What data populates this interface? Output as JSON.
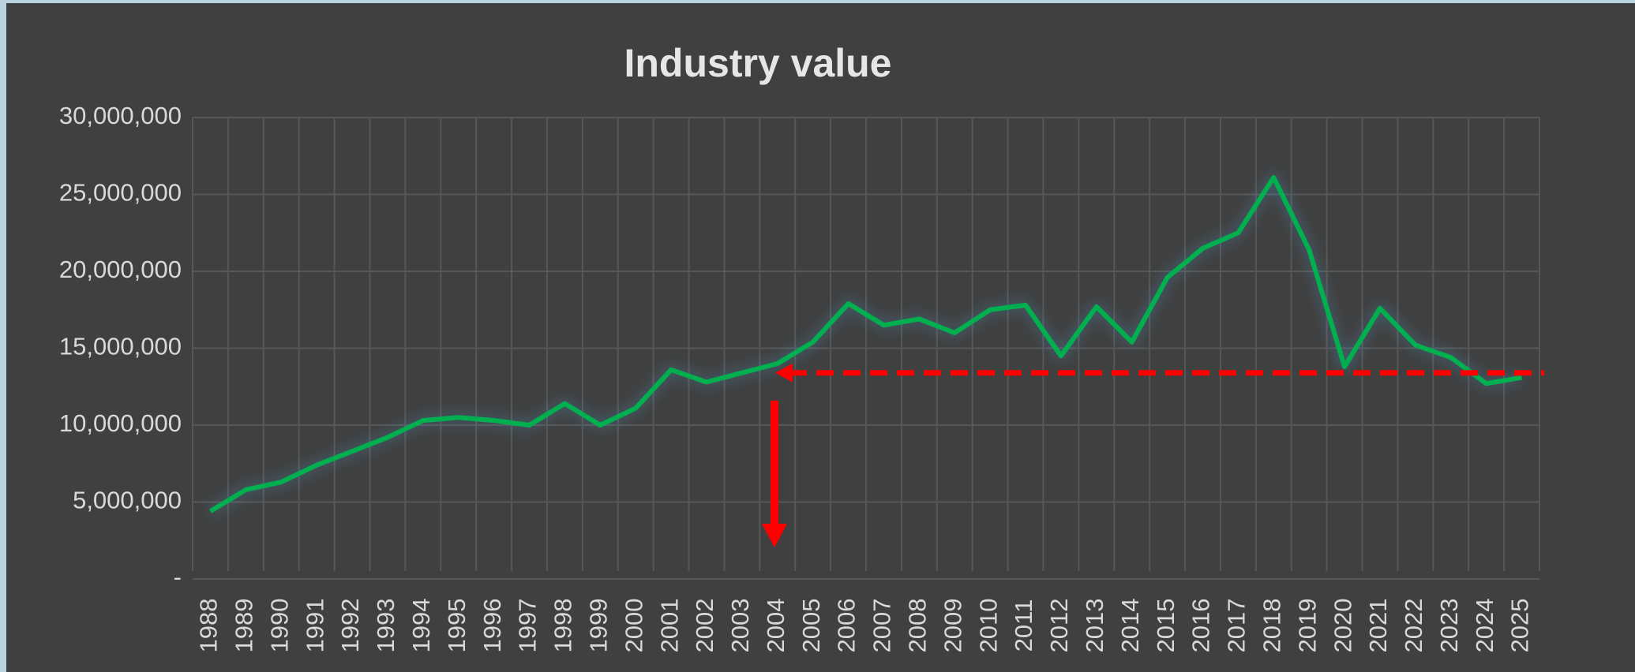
{
  "chart_data": {
    "type": "line",
    "title": "Industry value",
    "categories": [
      "1988",
      "1989",
      "1990",
      "1991",
      "1992",
      "1993",
      "1994",
      "1995",
      "1996",
      "1997",
      "1998",
      "1999",
      "2000",
      "2001",
      "2002",
      "2003",
      "2004",
      "2005",
      "2006",
      "2007",
      "2008",
      "2009",
      "2010",
      "2011",
      "2012",
      "2013",
      "2014",
      "2015",
      "2016",
      "2017",
      "2018",
      "2019",
      "2020",
      "2021",
      "2022",
      "2023",
      "2024",
      "2025"
    ],
    "series": [
      {
        "name": "Industry value",
        "color": "#00b050",
        "values": [
          4400000,
          5800000,
          6300000,
          7400000,
          8300000,
          9200000,
          10300000,
          10500000,
          10300000,
          10000000,
          11400000,
          10000000,
          11100000,
          13600000,
          12800000,
          13400000,
          14000000,
          15400000,
          17900000,
          16500000,
          16900000,
          16000000,
          17500000,
          17800000,
          14500000,
          17700000,
          15400000,
          19600000,
          21500000,
          22500000,
          26100000,
          21400000,
          13800000,
          17600000,
          15200000,
          14400000,
          12700000,
          13100000
        ]
      }
    ],
    "reference_line": {
      "value": 13400000,
      "color": "#ff0000"
    },
    "ylim": [
      0,
      30000000
    ],
    "yticks": [
      {
        "value": 0,
        "label": "-"
      },
      {
        "value": 5000000,
        "label": "5,000,000"
      },
      {
        "value": 10000000,
        "label": "10,000,000"
      },
      {
        "value": 15000000,
        "label": "15,000,000"
      },
      {
        "value": 20000000,
        "label": "20,000,000"
      },
      {
        "value": 25000000,
        "label": "25,000,000"
      },
      {
        "value": 30000000,
        "label": "30,000,000"
      }
    ],
    "grid": true
  }
}
